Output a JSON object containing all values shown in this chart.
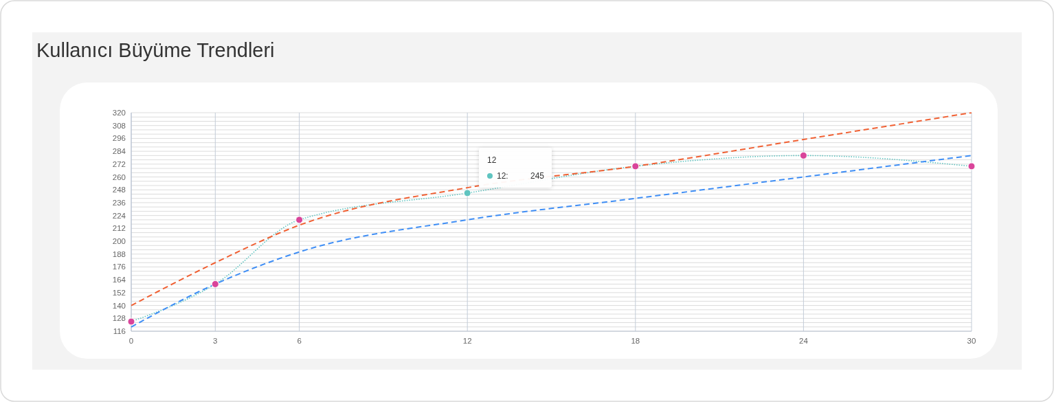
{
  "chart_data": {
    "type": "line",
    "title": "Kullanıcı Büyüme Trendleri",
    "x": [
      0,
      3,
      6,
      12,
      18,
      24,
      30
    ],
    "xlim": [
      0,
      30
    ],
    "xticks": [
      0,
      3,
      6,
      12,
      18,
      24,
      30
    ],
    "ylim": [
      116,
      320
    ],
    "yticks": [
      116,
      {
        "value": 120,
        "label": null
      },
      {
        "value": 124,
        "label": null
      },
      128,
      {
        "value": 132,
        "label": null
      },
      {
        "value": 136,
        "label": null
      },
      140,
      {
        "value": 144,
        "label": null
      },
      {
        "value": 148,
        "label": null
      },
      152,
      {
        "value": 156,
        "label": null
      },
      {
        "value": 160,
        "label": null
      },
      164,
      {
        "value": 168,
        "label": null
      },
      {
        "value": 172,
        "label": null
      },
      176,
      {
        "value": 180,
        "label": null
      },
      {
        "value": 184,
        "label": null
      },
      188,
      {
        "value": 192,
        "label": null
      },
      {
        "value": 196,
        "label": null
      },
      200,
      {
        "value": 204,
        "label": null
      },
      {
        "value": 208,
        "label": null
      },
      212,
      {
        "value": 216,
        "label": null
      },
      {
        "value": 220,
        "label": null
      },
      224,
      {
        "value": 228,
        "label": null
      },
      {
        "value": 232,
        "label": null
      },
      236,
      {
        "value": 240,
        "label": null
      },
      {
        "value": 244,
        "label": null
      },
      248,
      {
        "value": 252,
        "label": null
      },
      {
        "value": 256,
        "label": null
      },
      260,
      {
        "value": 264,
        "label": null
      },
      {
        "value": 268,
        "label": null
      },
      272,
      {
        "value": 276,
        "label": null
      },
      {
        "value": 280,
        "label": null
      },
      284,
      {
        "value": 288,
        "label": null
      },
      {
        "value": 292,
        "label": null
      },
      296,
      {
        "value": 300,
        "label": null
      },
      {
        "value": 304,
        "label": null
      },
      308,
      {
        "value": 312,
        "label": null
      },
      {
        "value": 316,
        "label": null
      },
      320
    ],
    "grid": true,
    "series": [
      {
        "color": "#5fc4c0",
        "line_style": "dotted",
        "marker": "none",
        "values": [
          125,
          160,
          220,
          245,
          270,
          280,
          270
        ]
      },
      {
        "color": "#f06033",
        "line_style": "dashed",
        "marker": "none",
        "values": [
          140,
          180,
          215,
          250,
          270,
          295,
          320
        ]
      },
      {
        "color": "#3f8ef5",
        "line_style": "dashed",
        "marker": "none",
        "values": [
          120,
          160,
          190,
          220,
          240,
          260,
          280
        ]
      },
      {
        "type": "scatter",
        "marker": "circle",
        "colors": [
          "#d9449a",
          "#d9449a",
          "#d9449a",
          "#5fc4c0",
          "#d9449a",
          "#d9449a",
          "#d9449a"
        ],
        "values": [
          125,
          160,
          220,
          245,
          270,
          280,
          270
        ]
      }
    ],
    "annotations": [
      "12",
      "12: 245"
    ]
  }
}
